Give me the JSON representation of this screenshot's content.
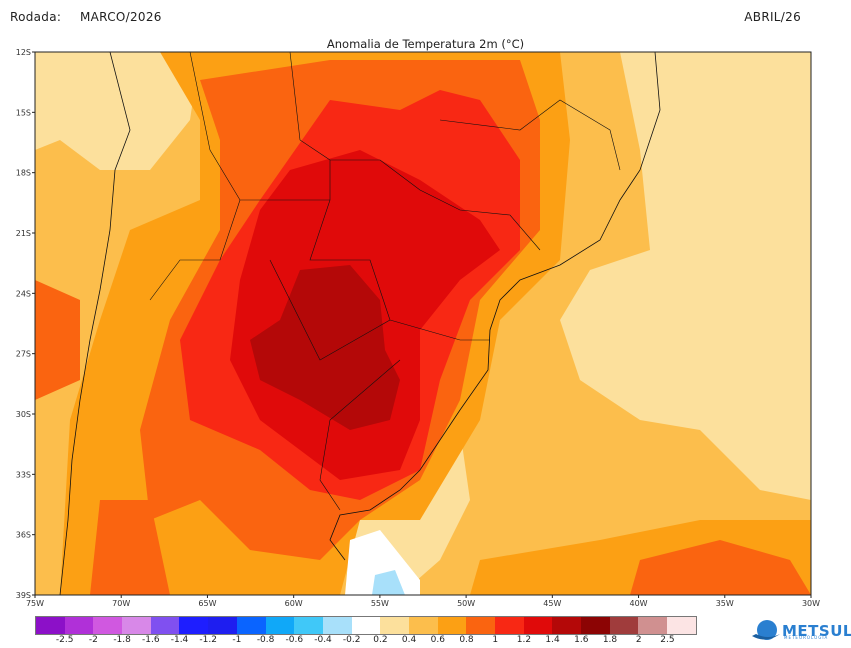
{
  "header": {
    "rodada_label": "Rodada:",
    "rodada_value": "MARCO/2026",
    "valid_month": "ABRIL/26"
  },
  "map": {
    "title": "Anomalia de Temperatura 2m (°C)",
    "lat_ticks": [
      {
        "v": 12,
        "label": "12S"
      },
      {
        "v": 15,
        "label": "15S"
      },
      {
        "v": 18,
        "label": "18S"
      },
      {
        "v": 21,
        "label": "21S"
      },
      {
        "v": 24,
        "label": "24S"
      },
      {
        "v": 27,
        "label": "27S"
      },
      {
        "v": 30,
        "label": "30S"
      },
      {
        "v": 33,
        "label": "33S"
      },
      {
        "v": 36,
        "label": "36S"
      },
      {
        "v": 39,
        "label": "39S"
      }
    ],
    "lon_ticks": [
      {
        "v": 75,
        "label": "75W"
      },
      {
        "v": 70,
        "label": "70W"
      },
      {
        "v": 65,
        "label": "65W"
      },
      {
        "v": 60,
        "label": "60W"
      },
      {
        "v": 55,
        "label": "55W"
      },
      {
        "v": 50,
        "label": "50W"
      },
      {
        "v": 45,
        "label": "45W"
      },
      {
        "v": 40,
        "label": "40W"
      },
      {
        "v": 35,
        "label": "35W"
      },
      {
        "v": 30,
        "label": "30W"
      }
    ],
    "lon_range": [
      75,
      30
    ],
    "lat_range": [
      12,
      39
    ]
  },
  "colorbar": {
    "colors": [
      "#8c10c8",
      "#b030d8",
      "#d058e0",
      "#d888e8",
      "#8050f0",
      "#1e1eff",
      "#1e1ef0",
      "#0a64ff",
      "#10a8f8",
      "#40c8f8",
      "#a8e0fa",
      "#ffffff",
      "#fce09c",
      "#fcbe4c",
      "#fca014",
      "#fa6410",
      "#f82814",
      "#e00a0a",
      "#b40808",
      "#8c0404",
      "#a03c3c",
      "#d09090",
      "#fce4e4"
    ],
    "labels": [
      "-2.5",
      "-2",
      "-1.8",
      "-1.6",
      "-1.4",
      "-1.2",
      "-1",
      "-0.8",
      "-0.6",
      "-0.4",
      "-0.2",
      "0.2",
      "0.4",
      "0.6",
      "0.8",
      "1",
      "1.2",
      "1.4",
      "1.6",
      "1.8",
      "2",
      "2.5"
    ]
  },
  "logo": {
    "text": "METSUL",
    "sub": "METEOROLOGIA"
  }
}
